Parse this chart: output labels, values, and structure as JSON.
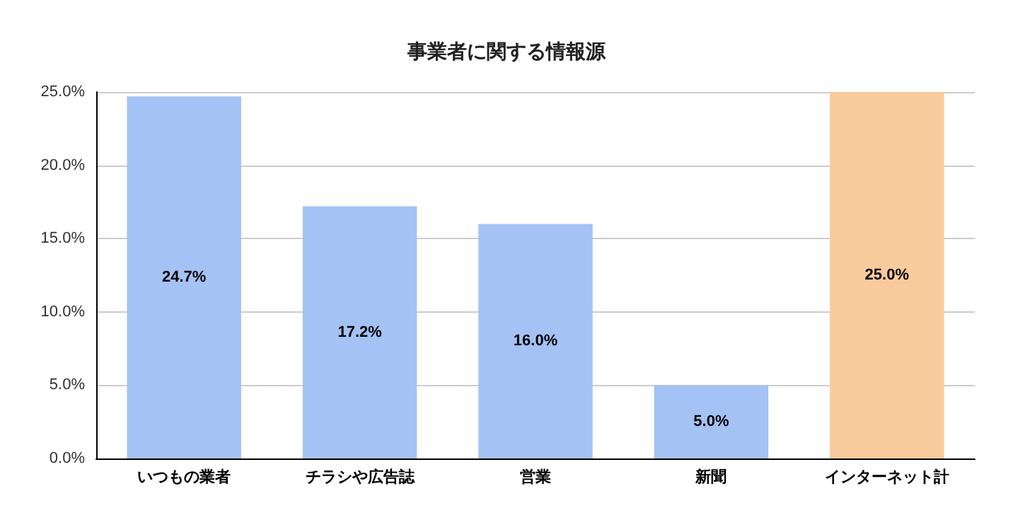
{
  "chart_data": {
    "type": "bar",
    "title": "事業者に関する情報源",
    "categories": [
      "いつもの業者",
      "チラシや広告誌",
      "営業",
      "新聞",
      "インターネット計"
    ],
    "values": [
      24.7,
      17.2,
      16.0,
      5.0,
      25.0
    ],
    "value_labels": [
      "24.7%",
      "17.2%",
      "16.0%",
      "5.0%",
      "25.0%"
    ],
    "colors": [
      "#a4c2f4",
      "#a4c2f4",
      "#a4c2f4",
      "#a4c2f4",
      "#f9cb9c"
    ],
    "ylim": [
      0,
      25
    ],
    "yticks": [
      {
        "value": 0,
        "label": "0.0%"
      },
      {
        "value": 5,
        "label": "5.0%"
      },
      {
        "value": 10,
        "label": "10.0%"
      },
      {
        "value": 15,
        "label": "15.0%"
      },
      {
        "value": 20,
        "label": "20.0%"
      },
      {
        "value": 25,
        "label": "25.0%"
      }
    ],
    "grid": "y"
  }
}
